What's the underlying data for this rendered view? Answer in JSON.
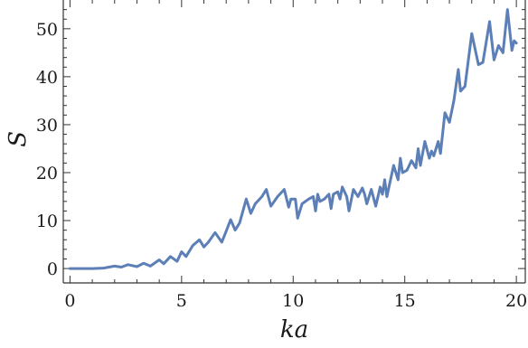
{
  "chart_data": {
    "type": "line",
    "title": "",
    "xlabel": "ka",
    "ylabel": "S",
    "xlim": [
      -0.3,
      20.4
    ],
    "ylim": [
      -3,
      56
    ],
    "grid": false,
    "line_color": "#5b7fb6",
    "x_ticks": [
      0,
      5,
      10,
      15,
      20
    ],
    "y_ticks": [
      0,
      10,
      20,
      30,
      40,
      50
    ],
    "x_tick_labels": [
      "0",
      "5",
      "10",
      "15",
      "20"
    ],
    "y_tick_labels": [
      "0",
      "10",
      "20",
      "30",
      "40",
      "50"
    ],
    "series": [
      {
        "x": [
          0,
          0.5,
          1.0,
          1.5,
          2.0,
          2.3,
          2.6,
          3.0,
          3.3,
          3.6,
          4.0,
          4.2,
          4.5,
          4.8,
          5.0,
          5.2,
          5.5,
          5.8,
          6.0,
          6.2,
          6.5,
          6.8,
          7.0,
          7.2,
          7.4,
          7.6,
          7.9,
          8.1,
          8.3,
          8.6,
          8.8,
          9.0,
          9.3,
          9.6,
          9.8,
          9.9,
          10.1,
          10.2,
          10.4,
          10.7,
          10.9,
          11.0,
          11.1,
          11.2,
          11.4,
          11.6,
          11.7,
          11.8,
          12.0,
          12.1,
          12.2,
          12.4,
          12.5,
          12.7,
          12.9,
          13.1,
          13.2,
          13.3,
          13.5,
          13.7,
          13.9,
          14.0,
          14.1,
          14.2,
          14.5,
          14.7,
          14.8,
          14.9,
          15.1,
          15.3,
          15.5,
          15.6,
          15.7,
          15.9,
          16.1,
          16.2,
          16.3,
          16.5,
          16.6,
          16.8,
          17.0,
          17.2,
          17.4,
          17.5,
          17.7,
          18.0,
          18.3,
          18.5,
          18.8,
          19.0,
          19.2,
          19.4,
          19.6,
          19.8,
          19.9,
          20.0
        ],
        "y": [
          0,
          0,
          0,
          0.1,
          0.5,
          0.3,
          0.8,
          0.4,
          1.1,
          0.5,
          1.8,
          1.0,
          2.5,
          1.5,
          3.5,
          2.5,
          4.8,
          6.0,
          4.5,
          5.5,
          7.5,
          5.5,
          7.8,
          10.2,
          8.0,
          9.5,
          14.5,
          11.5,
          13.5,
          15.0,
          16.5,
          13.0,
          15.0,
          16.5,
          12.8,
          14.5,
          14.5,
          10.5,
          13.5,
          14.5,
          15.0,
          12.0,
          15.5,
          14.0,
          14.5,
          15.5,
          12.5,
          15.5,
          16.0,
          14.5,
          17.0,
          15.0,
          12.0,
          16.5,
          15.0,
          16.8,
          15.5,
          13.5,
          16.5,
          13.0,
          17.0,
          15.5,
          18.5,
          15.0,
          21.5,
          18.5,
          23.0,
          20.0,
          20.5,
          22.5,
          21.0,
          25.0,
          21.5,
          26.5,
          23.0,
          24.5,
          23.5,
          26.5,
          24.0,
          32.5,
          30.5,
          35.0,
          41.5,
          37.0,
          38.0,
          49.0,
          42.5,
          43.0,
          51.5,
          43.5,
          46.5,
          45.0,
          54.0,
          45.5,
          47.5,
          47.0
        ]
      }
    ]
  }
}
